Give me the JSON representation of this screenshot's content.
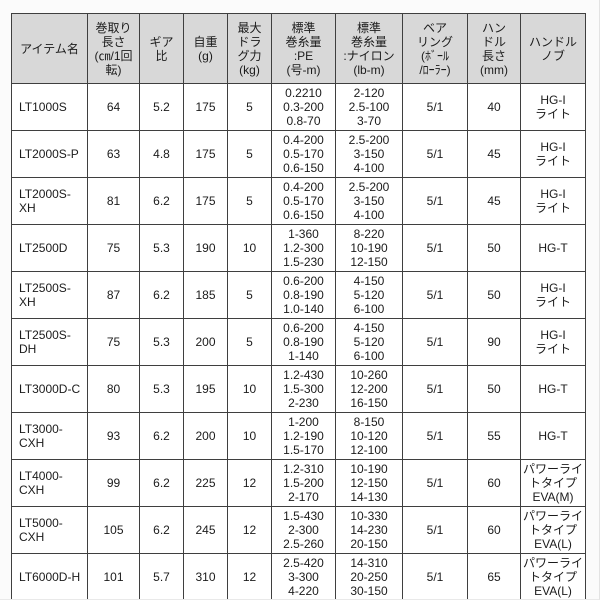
{
  "colors": {
    "page_background": "#fbfbfb",
    "header_background": "#d8d8d8",
    "cell_background": "#ffffff",
    "border": "#3f3f3f",
    "text": "#1b1b1b"
  },
  "table": {
    "headers": [
      {
        "id": "item-name",
        "label": "アイテム名"
      },
      {
        "id": "retrieve-length",
        "label": "巻取り\n長さ\n(㎝/1回\n転)"
      },
      {
        "id": "gear-ratio",
        "label": "ギア\n比"
      },
      {
        "id": "weight",
        "label": "自重\n(g)"
      },
      {
        "id": "max-drag",
        "label": "最大\nドラ\nグ力\n(kg)"
      },
      {
        "id": "line-capacity-pe",
        "label": "標準\n巻糸量\n:PE\n(号-m)"
      },
      {
        "id": "line-capacity-nylon",
        "label": "標準\n巻糸量\n:ナイロン\n(lb-m)"
      },
      {
        "id": "bearings",
        "label": "ベア\nリング\n(ﾎﾞｰﾙ\n/ﾛｰﾗｰ)"
      },
      {
        "id": "handle-length",
        "label": "ハン\nドル\n長さ\n(mm)"
      },
      {
        "id": "handle-knob",
        "label": "ハンドル\nノブ"
      }
    ],
    "rows": [
      [
        "LT1000S",
        "64",
        "5.2",
        "175",
        "5",
        "0.2210\n0.3-200\n0.8-70",
        "2-120\n2.5-100\n3-70",
        "5/1",
        "40",
        "HG-I\nライト"
      ],
      [
        "LT2000S-P",
        "63",
        "4.8",
        "175",
        "5",
        "0.4-200\n0.5-170\n0.6-150",
        "2.5-200\n3-150\n4-100",
        "5/1",
        "45",
        "HG-I\nライト"
      ],
      [
        "LT2000S-XH",
        "81",
        "6.2",
        "175",
        "5",
        "0.4-200\n0.5-170\n0.6-150",
        "2.5-200\n3-150\n4-100",
        "5/1",
        "45",
        "HG-I\nライト"
      ],
      [
        "LT2500D",
        "75",
        "5.3",
        "190",
        "10",
        "1-360\n1.2-300\n1.5-230",
        "8-220\n10-190\n12-150",
        "5/1",
        "50",
        "HG-T"
      ],
      [
        "LT2500S-XH",
        "87",
        "6.2",
        "185",
        "5",
        "0.6-200\n0.8-190\n1.0-140",
        "4-150\n5-120\n6-100",
        "5/1",
        "50",
        "HG-I\nライト"
      ],
      [
        "LT2500S-DH",
        "75",
        "5.3",
        "200",
        "5",
        "0.6-200\n0.8-190\n1-140",
        "4-150\n5-120\n6-100",
        "5/1",
        "90",
        "HG-I\nライト"
      ],
      [
        "LT3000D-C",
        "80",
        "5.3",
        "195",
        "10",
        "1.2-430\n1.5-300\n2-230",
        "10-260\n12-200\n16-150",
        "5/1",
        "50",
        "HG-T"
      ],
      [
        "LT3000-CXH",
        "93",
        "6.2",
        "200",
        "10",
        "1-200\n1.2-190\n1.5-170",
        "8-150\n10-120\n12-100",
        "5/1",
        "55",
        "HG-T"
      ],
      [
        "LT4000-CXH",
        "99",
        "6.2",
        "225",
        "12",
        "1.2-310\n1.5-200\n2-170",
        "10-190\n12-150\n14-130",
        "5/1",
        "60",
        "パワーライトタイプ\nEVA(M)"
      ],
      [
        "LT5000-CXH",
        "105",
        "6.2",
        "245",
        "12",
        "1.5-430\n2-300\n2.5-260",
        "10-330\n14-230\n20-150",
        "5/1",
        "60",
        "パワーライトタイプ\nEVA(L)"
      ],
      [
        "LT6000D-H",
        "101",
        "5.7",
        "310",
        "12",
        "2.5-420\n3-300\n4-220",
        "14-310\n20-250\n30-150",
        "5/1",
        "65",
        "パワーライトタイプ\nEVA(L)"
      ]
    ]
  }
}
